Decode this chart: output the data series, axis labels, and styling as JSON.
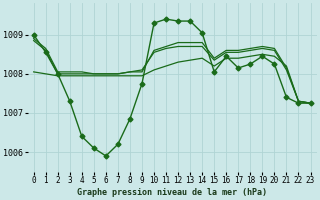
{
  "title": "Graphe pression niveau de la mer (hPa)",
  "background_color": "#cce8e8",
  "grid_color": "#b0d4d4",
  "line_color": "#1a6b1a",
  "ylim": [
    1005.5,
    1009.8
  ],
  "yticks": [
    1006,
    1007,
    1008,
    1009
  ],
  "xlim": [
    -0.5,
    23.5
  ],
  "series": [
    {
      "x": [
        0,
        1,
        2,
        3,
        4,
        5,
        6,
        7,
        8,
        9,
        10,
        11,
        12,
        13,
        14,
        15,
        16,
        17,
        18,
        19,
        20,
        21,
        22,
        23
      ],
      "y": [
        1009.0,
        1008.55,
        1008.0,
        1007.3,
        1006.4,
        1006.1,
        1005.9,
        1006.2,
        1006.85,
        1007.75,
        1009.3,
        1009.4,
        1009.35,
        1009.35,
        1009.05,
        1008.05,
        1008.45,
        1008.15,
        1008.25,
        1008.45,
        1008.25,
        1007.4,
        1007.25,
        1007.25
      ],
      "marker": "D",
      "markersize": 2.5,
      "linewidth": 1.0
    },
    {
      "x": [
        0,
        1,
        2,
        3,
        4,
        5,
        6,
        7,
        8,
        9,
        10,
        11,
        12,
        13,
        14,
        15,
        16,
        17,
        18,
        19,
        20,
        21,
        22,
        23
      ],
      "y": [
        1008.05,
        1008.0,
        1007.95,
        1007.95,
        1007.95,
        1007.95,
        1007.95,
        1007.95,
        1007.95,
        1007.95,
        1008.1,
        1008.2,
        1008.3,
        1008.35,
        1008.4,
        1008.2,
        1008.4,
        1008.4,
        1008.45,
        1008.5,
        1008.45,
        1008.2,
        1007.3,
        1007.25
      ],
      "marker": null,
      "linewidth": 0.9
    },
    {
      "x": [
        0,
        1,
        2,
        3,
        4,
        5,
        6,
        7,
        8,
        9,
        10,
        11,
        12,
        13,
        14,
        15,
        16,
        17,
        18,
        19,
        20,
        21,
        22,
        23
      ],
      "y": [
        1008.85,
        1008.6,
        1008.0,
        1008.0,
        1008.0,
        1008.0,
        1008.0,
        1008.0,
        1008.05,
        1008.1,
        1008.55,
        1008.65,
        1008.7,
        1008.7,
        1008.7,
        1008.35,
        1008.55,
        1008.55,
        1008.6,
        1008.65,
        1008.6,
        1008.1,
        1007.3,
        1007.25
      ],
      "marker": null,
      "linewidth": 0.9
    },
    {
      "x": [
        0,
        1,
        2,
        3,
        4,
        5,
        6,
        7,
        8,
        9,
        10,
        11,
        12,
        13,
        14,
        15,
        16,
        17,
        18,
        19,
        20,
        21,
        22,
        23
      ],
      "y": [
        1008.9,
        1008.65,
        1008.05,
        1008.05,
        1008.05,
        1008.0,
        1008.0,
        1008.0,
        1008.05,
        1008.05,
        1008.6,
        1008.7,
        1008.8,
        1008.8,
        1008.8,
        1008.4,
        1008.6,
        1008.6,
        1008.65,
        1008.7,
        1008.65,
        1008.15,
        1007.3,
        1007.25
      ],
      "marker": null,
      "linewidth": 0.9
    }
  ],
  "xlabel_fontsize": 6.0,
  "tick_fontsize": 5.5,
  "ytick_fontsize": 6.0
}
